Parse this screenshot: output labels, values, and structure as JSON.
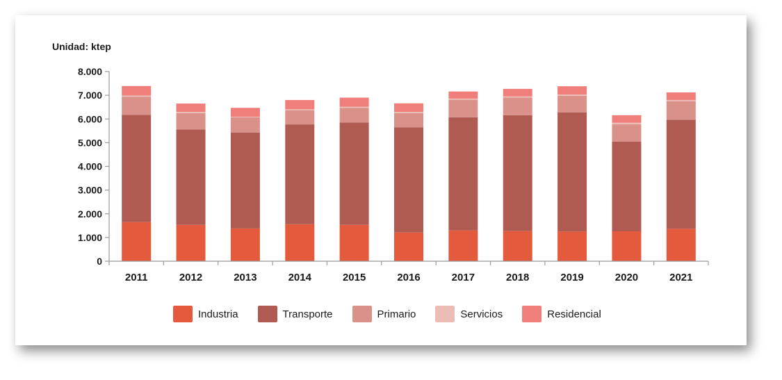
{
  "chart_data": {
    "type": "bar",
    "stacked": true,
    "unit_label": "Unidad: ktep",
    "categories": [
      "2011",
      "2012",
      "2013",
      "2014",
      "2015",
      "2016",
      "2017",
      "2018",
      "2019",
      "2020",
      "2021"
    ],
    "series": [
      {
        "name": "Industria",
        "color": "#e35a3c",
        "values": [
          1650,
          1530,
          1380,
          1560,
          1530,
          1210,
          1300,
          1270,
          1250,
          1260,
          1370
        ]
      },
      {
        "name": "Transporte",
        "color": "#b05b52",
        "values": [
          4520,
          4030,
          4050,
          4210,
          4320,
          4440,
          4770,
          4890,
          5030,
          3790,
          4600
        ]
      },
      {
        "name": "Primario",
        "color": "#d9918a",
        "values": [
          770,
          690,
          640,
          600,
          620,
          600,
          740,
          740,
          700,
          730,
          780
        ]
      },
      {
        "name": "Servicios",
        "color": "#ecbcb6",
        "values": [
          50,
          50,
          20,
          40,
          50,
          50,
          50,
          50,
          50,
          60,
          50
        ]
      },
      {
        "name": "Residencial",
        "color": "#f07f7b",
        "values": [
          400,
          350,
          380,
          390,
          380,
          360,
          300,
          320,
          350,
          320,
          320
        ]
      }
    ],
    "y_ticks": [
      "0",
      "1.000",
      "2.000",
      "3.000",
      "4.000",
      "5.000",
      "6.000",
      "7.000",
      "8.000"
    ],
    "ylim": [
      0,
      8000
    ],
    "xlabel": "",
    "ylabel": "",
    "legend_position": "bottom"
  }
}
